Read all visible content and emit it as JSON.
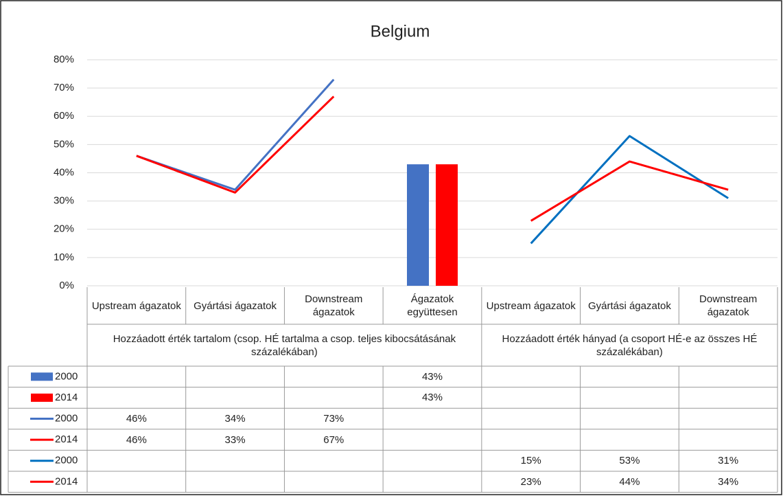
{
  "chart_data": {
    "type": "combo",
    "title": "Belgium",
    "categories": [
      "Upstream ágazatok",
      "Gyártási ágazatok",
      "Downstream ágazatok",
      "Ágazatok együttesen",
      "Upstream ágazatok",
      "Gyártási ágazatok",
      "Downstream ágazatok"
    ],
    "groups": [
      "Hozzáadott érték tartalom (csop. HÉ tartalma a csop. teljes kibocsátásának százalékában)",
      "Hozzáadott érték hányad (a csoport HÉ-e az összes HÉ százalékában)"
    ],
    "ylim": [
      0,
      80
    ],
    "yticks": [
      {
        "value": 0,
        "label": "0%"
      },
      {
        "value": 10,
        "label": "10%"
      },
      {
        "value": 20,
        "label": "20%"
      },
      {
        "value": 30,
        "label": "30%"
      },
      {
        "value": 40,
        "label": "40%"
      },
      {
        "value": 50,
        "label": "50%"
      },
      {
        "value": 60,
        "label": "60%"
      },
      {
        "value": 70,
        "label": "70%"
      },
      {
        "value": 80,
        "label": "80%"
      }
    ],
    "grid": true,
    "series": [
      {
        "name": "2000",
        "type": "bar",
        "color": "#4472c4",
        "values": [
          null,
          null,
          null,
          43,
          null,
          null,
          null
        ],
        "value_labels": [
          null,
          null,
          null,
          "43%",
          null,
          null,
          null
        ]
      },
      {
        "name": "2014",
        "type": "bar",
        "color": "#ff0000",
        "values": [
          null,
          null,
          null,
          43,
          null,
          null,
          null
        ],
        "value_labels": [
          null,
          null,
          null,
          "43%",
          null,
          null,
          null
        ]
      },
      {
        "name": "2000",
        "type": "line",
        "color": "#4472c4",
        "values": [
          46,
          34,
          73,
          null,
          null,
          null,
          null
        ],
        "value_labels": [
          "46%",
          "34%",
          "73%",
          null,
          null,
          null,
          null
        ]
      },
      {
        "name": "2014",
        "type": "line",
        "color": "#ff0000",
        "values": [
          46,
          33,
          67,
          null,
          null,
          null,
          null
        ],
        "value_labels": [
          "46%",
          "33%",
          "67%",
          null,
          null,
          null,
          null
        ]
      },
      {
        "name": "2000",
        "type": "line",
        "color": "#0070c0",
        "values": [
          null,
          null,
          null,
          null,
          15,
          53,
          31
        ],
        "value_labels": [
          null,
          null,
          null,
          null,
          "15%",
          "53%",
          "31%"
        ]
      },
      {
        "name": "2014",
        "type": "line",
        "color": "#ff0000",
        "values": [
          null,
          null,
          null,
          null,
          23,
          44,
          34
        ],
        "value_labels": [
          null,
          null,
          null,
          null,
          "23%",
          "44%",
          "34%"
        ]
      }
    ]
  }
}
